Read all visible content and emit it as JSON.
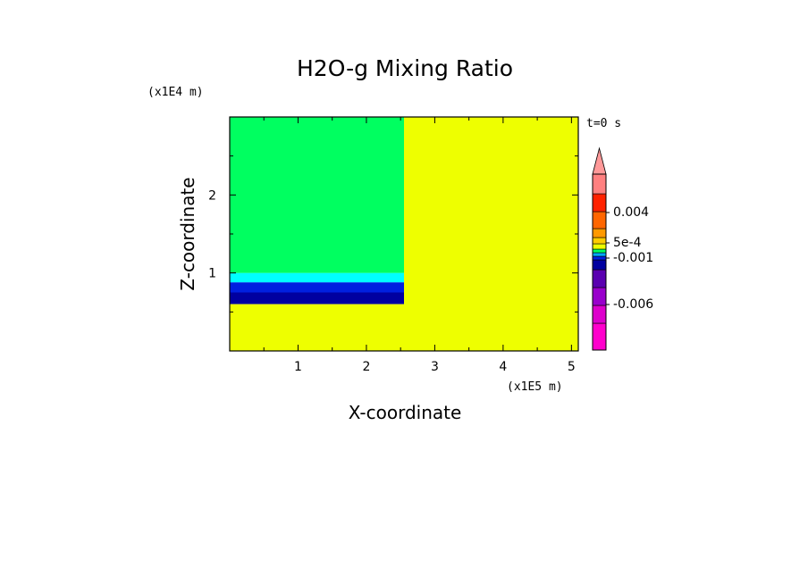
{
  "chart_data": {
    "type": "heatmap",
    "title": "H2O-g Mixing Ratio",
    "xlabel": "X-coordinate",
    "ylabel": "Z-coordinate",
    "x_scale_label": "(x1E5 m)",
    "y_scale_label": "(x1E4 m)",
    "time_label": "t=0 s",
    "xlim": [
      0,
      5.1
    ],
    "ylim": [
      0,
      3.0
    ],
    "x_ticks": [
      "1",
      "2",
      "3",
      "4",
      "5"
    ],
    "y_ticks": [
      "1",
      "2"
    ],
    "regions": [
      {
        "x": [
          0,
          2.55
        ],
        "y": [
          0.6,
          0.75
        ],
        "color": "#0000a0"
      },
      {
        "x": [
          0,
          2.55
        ],
        "y": [
          0.75,
          0.88
        ],
        "color": "#0020e0"
      },
      {
        "x": [
          0,
          2.55
        ],
        "y": [
          0.88,
          1.0
        ],
        "color": "#00ffff"
      },
      {
        "x": [
          0,
          2.55
        ],
        "y": [
          1.0,
          3.0
        ],
        "color": "#00ff60"
      },
      {
        "x": [
          2.55,
          5.1
        ],
        "y": [
          0,
          3.0
        ],
        "color": "#eeff00"
      },
      {
        "x": [
          0,
          2.55
        ],
        "y": [
          0,
          0.6
        ],
        "color": "#eeff00"
      }
    ],
    "colorbar": {
      "bands_bottom_to_top": [
        "#ff00cc",
        "#dd00cc",
        "#9900cc",
        "#5a00b0",
        "#0000a0",
        "#0020e0",
        "#00aaff",
        "#00ff60",
        "#eeff00",
        "#ffcc00",
        "#ff9900",
        "#ff6600",
        "#ff2200",
        "#ff8080"
      ],
      "arrow_color": "#ff9999",
      "labels": [
        "0.004",
        "5e-4",
        "-0.001",
        "-0.006"
      ]
    }
  }
}
